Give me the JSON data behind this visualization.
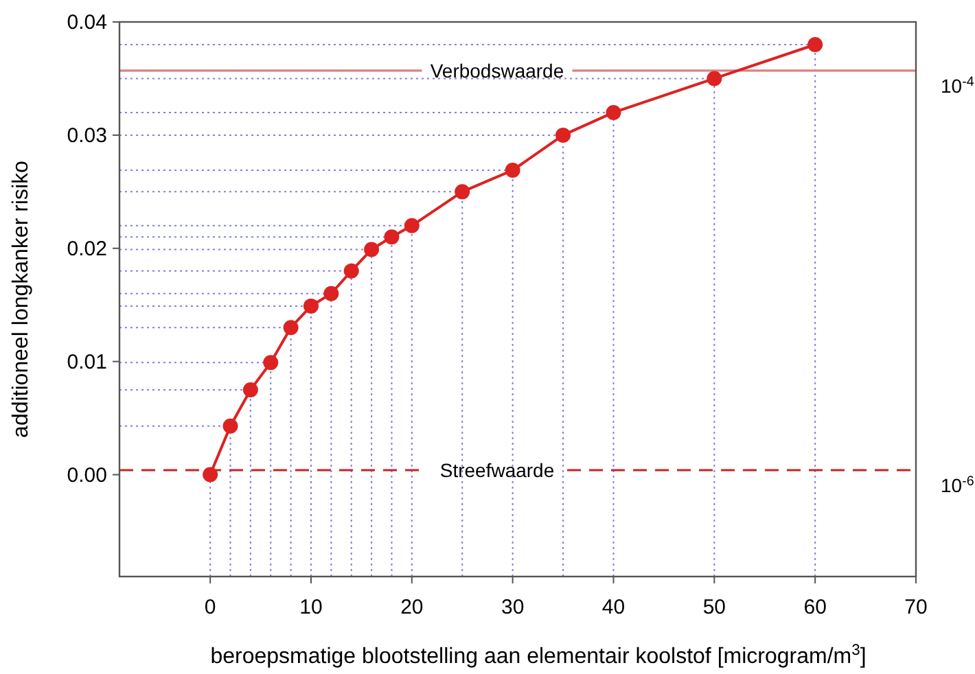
{
  "chart_data": {
    "type": "line",
    "xlabel": "beroepsmatige blootstelling aan elementair koolstof [microgram/m$^{3}$]",
    "ylabel": "additioneel longkanker risiko",
    "x": [
      0,
      2,
      4,
      6,
      8,
      10,
      12,
      14,
      16,
      18,
      20,
      25,
      30,
      35,
      40,
      50,
      60
    ],
    "series": [
      {
        "color": "#dd2222",
        "values": [
          0,
          0.0043,
          0.0075,
          0.0099,
          0.013,
          0.0149,
          0.016,
          0.018,
          0.0199,
          0.021,
          0.022,
          0.025,
          0.0269,
          0.03,
          0.032,
          0.035,
          0.038
        ]
      }
    ],
    "xlim": [
      -9,
      70
    ],
    "xticks": [
      0,
      10,
      20,
      30,
      40,
      50,
      60,
      70
    ],
    "ylim": [
      -0.009,
      0.04
    ],
    "yticks": [
      {
        "value": 0,
        "label": "0.00"
      },
      {
        "value": 0.01,
        "label": "0.01"
      },
      {
        "value": 0.02,
        "label": "0.02"
      },
      {
        "value": 0.03,
        "label": "0.03"
      },
      {
        "value": 0.04,
        "label": "0.04"
      }
    ],
    "ref_lines": [
      {
        "axis": "y",
        "value": 0.0357,
        "label": "Verbodswaarde",
        "color": "#e08080",
        "line_style": "solid"
      },
      {
        "axis": "y",
        "value": 0.0004,
        "label": "Streefwaarde",
        "color": "#cc2222",
        "line_style": "dashed"
      },
      {
        "axis": "x",
        "value": 0,
        "color": "#8080dd",
        "line_style": "dotted"
      },
      {
        "axis": "x",
        "value": 2,
        "color": "#8080dd",
        "line_style": "dotted"
      },
      {
        "axis": "x",
        "value": 4,
        "color": "#8080dd",
        "line_style": "dotted"
      },
      {
        "axis": "x",
        "value": 6,
        "color": "#8080dd",
        "line_style": "dotted"
      },
      {
        "axis": "x",
        "value": 8,
        "color": "#8080dd",
        "line_style": "dotted"
      },
      {
        "axis": "x",
        "value": 10,
        "color": "#8080dd",
        "line_style": "dotted"
      },
      {
        "axis": "x",
        "value": 12,
        "color": "#8080dd",
        "line_style": "dotted"
      },
      {
        "axis": "x",
        "value": 14,
        "color": "#8080dd",
        "line_style": "dotted"
      },
      {
        "axis": "x",
        "value": 16,
        "color": "#8080dd",
        "line_style": "dotted"
      },
      {
        "axis": "x",
        "value": 18,
        "color": "#8080dd",
        "line_style": "dotted"
      },
      {
        "axis": "x",
        "value": 20,
        "color": "#8080dd",
        "line_style": "dotted"
      },
      {
        "axis": "x",
        "value": 25,
        "color": "#8080dd",
        "line_style": "dotted"
      },
      {
        "axis": "x",
        "value": 30,
        "color": "#8080dd",
        "line_style": "dotted"
      },
      {
        "axis": "x",
        "value": 35,
        "color": "#8080dd",
        "line_style": "dotted"
      },
      {
        "axis": "x",
        "value": 40,
        "color": "#8080dd",
        "line_style": "dotted"
      },
      {
        "axis": "x",
        "value": 50,
        "color": "#8080dd",
        "line_style": "dotted"
      },
      {
        "axis": "x",
        "value": 60,
        "color": "#8080dd",
        "line_style": "dotted"
      },
      {
        "axis": "y",
        "value": 0.0043,
        "color": "#8080dd",
        "line_style": "dotted"
      },
      {
        "axis": "y",
        "value": 0.0075,
        "color": "#8080dd",
        "line_style": "dotted"
      },
      {
        "axis": "y",
        "value": 0.0099,
        "color": "#8080dd",
        "line_style": "dotted"
      },
      {
        "axis": "y",
        "value": 0.013,
        "color": "#8080dd",
        "line_style": "dotted"
      },
      {
        "axis": "y",
        "value": 0.0149,
        "color": "#8080dd",
        "line_style": "dotted"
      },
      {
        "axis": "y",
        "value": 0.016,
        "color": "#8080dd",
        "line_style": "dotted"
      },
      {
        "axis": "y",
        "value": 0.018,
        "color": "#8080dd",
        "line_style": "dotted"
      },
      {
        "axis": "y",
        "value": 0.0199,
        "color": "#8080dd",
        "line_style": "dotted"
      },
      {
        "axis": "y",
        "value": 0.021,
        "color": "#8080dd",
        "line_style": "dotted"
      },
      {
        "axis": "y",
        "value": 0.022,
        "color": "#8080dd",
        "line_style": "dotted"
      },
      {
        "axis": "y",
        "value": 0.025,
        "color": "#8080dd",
        "line_style": "dotted"
      },
      {
        "axis": "y",
        "value": 0.0269,
        "color": "#8080dd",
        "line_style": "dotted"
      },
      {
        "axis": "y",
        "value": 0.03,
        "color": "#8080dd",
        "line_style": "dotted"
      },
      {
        "axis": "y",
        "value": 0.032,
        "color": "#8080dd",
        "line_style": "dotted"
      },
      {
        "axis": "y",
        "value": 0.035,
        "color": "#8080dd",
        "line_style": "dotted"
      },
      {
        "axis": "y",
        "value": 0.038,
        "color": "#8080dd",
        "line_style": "dotted"
      }
    ],
    "annotations": [
      "10$^{-4}$",
      "10$^{-6}$"
    ],
    "marker": "circle",
    "line_style": "solid"
  }
}
